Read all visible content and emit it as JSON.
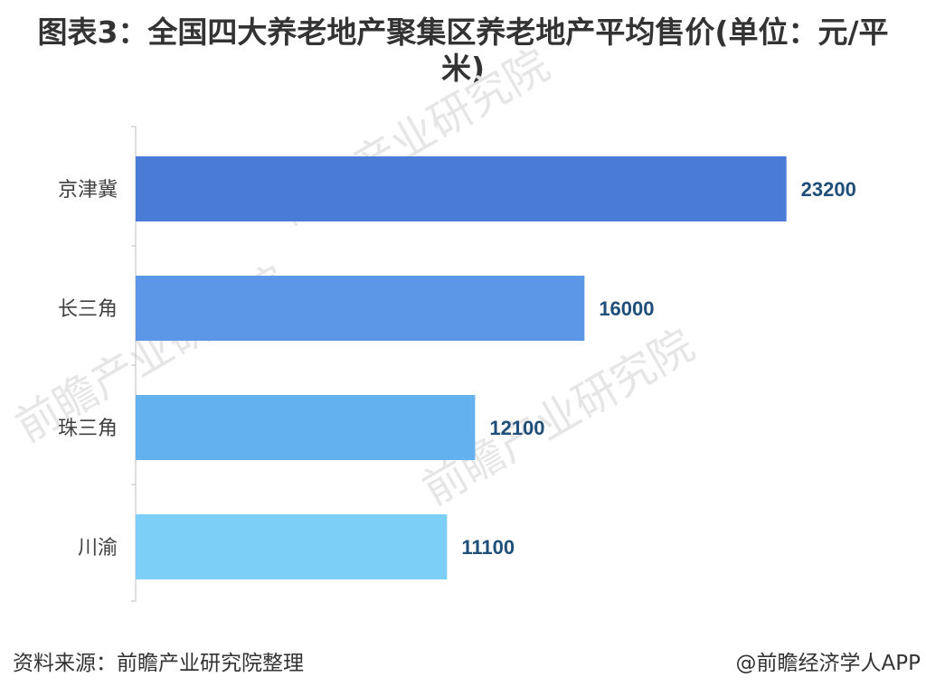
{
  "chart_data": {
    "type": "bar",
    "orientation": "horizontal",
    "title": "图表3：全国四大养老地产聚集区养老地产平均售价(单位：元/平米)",
    "categories": [
      "京津冀",
      "长三角",
      "珠三角",
      "川渝"
    ],
    "values": [
      23200,
      16000,
      12100,
      11100
    ],
    "colors": [
      "#4a7bd6",
      "#5b97e6",
      "#63b1ef",
      "#7cd0f8"
    ],
    "xlim": [
      0,
      24500
    ],
    "grid": false,
    "legend": "none"
  },
  "watermarks": [
    "前瞻产业研究院",
    "前瞻产业研究院",
    "前瞻产业研究院"
  ],
  "footer": {
    "source": "资料来源：前瞻产业研究院整理",
    "credit": "@前瞻经济学人APP"
  }
}
